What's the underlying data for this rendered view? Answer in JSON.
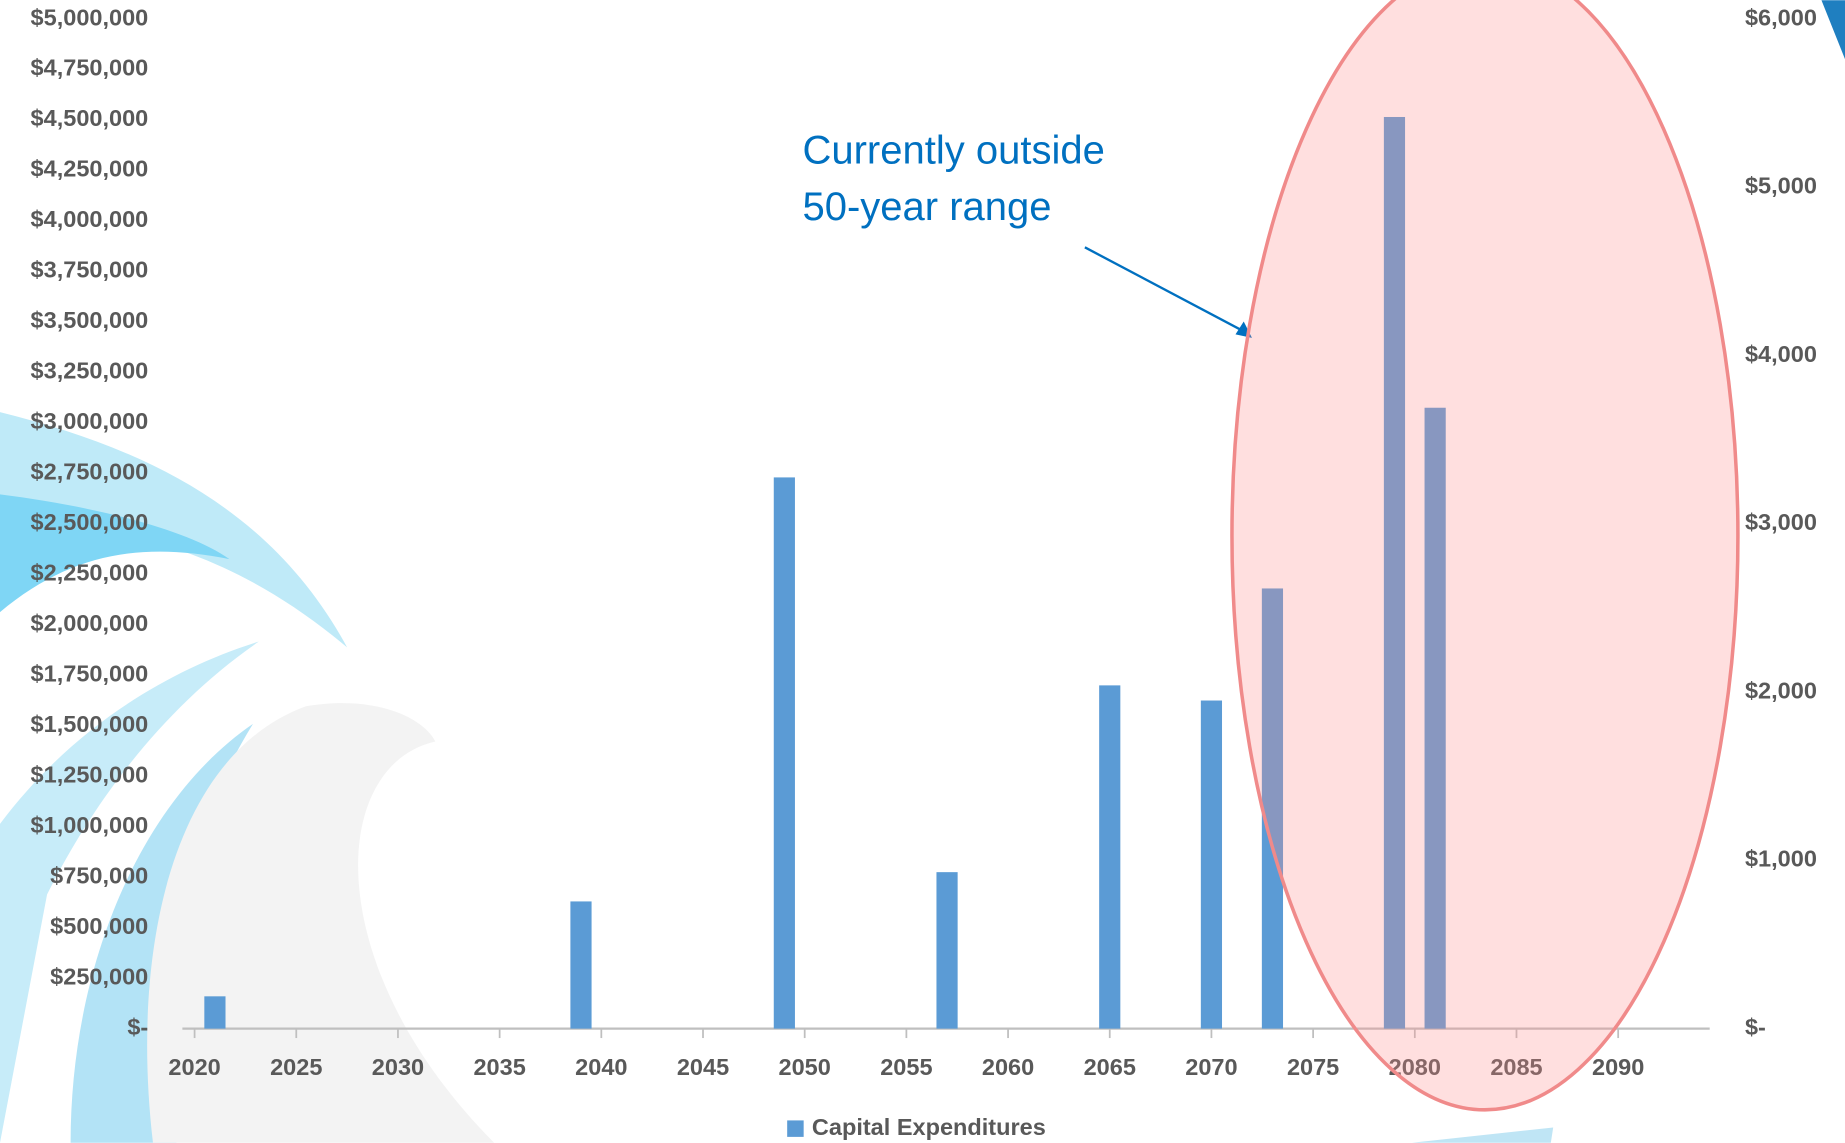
{
  "chart_data": {
    "type": "bar",
    "x": [
      2021,
      2039,
      2049,
      2057,
      2065,
      2070,
      2073,
      2079,
      2081
    ],
    "series": [
      {
        "name": "Capital Expenditures",
        "color": "#5b9bd5",
        "values": [
          160000,
          630000,
          2730000,
          775000,
          1700000,
          1625000,
          2180000,
          4515000,
          3075000
        ]
      }
    ],
    "xlim": [
      2019.4,
      2094.5
    ],
    "xticks": [
      2020,
      2025,
      2030,
      2035,
      2040,
      2045,
      2050,
      2055,
      2060,
      2065,
      2070,
      2075,
      2080,
      2085,
      2090
    ],
    "ylim": [
      0,
      5000000
    ],
    "yticks": [
      {
        "value": 0,
        "label": "$-"
      },
      {
        "value": 250000,
        "label": "$250,000"
      },
      {
        "value": 500000,
        "label": "$500,000"
      },
      {
        "value": 750000,
        "label": "$750,000"
      },
      {
        "value": 1000000,
        "label": "$1,000,000"
      },
      {
        "value": 1250000,
        "label": "$1,250,000"
      },
      {
        "value": 1500000,
        "label": "$1,500,000"
      },
      {
        "value": 1750000,
        "label": "$1,750,000"
      },
      {
        "value": 2000000,
        "label": "$2,000,000"
      },
      {
        "value": 2250000,
        "label": "$2,250,000"
      },
      {
        "value": 2500000,
        "label": "$2,500,000"
      },
      {
        "value": 2750000,
        "label": "$2,750,000"
      },
      {
        "value": 3000000,
        "label": "$3,000,000"
      },
      {
        "value": 3250000,
        "label": "$3,250,000"
      },
      {
        "value": 3500000,
        "label": "$3,500,000"
      },
      {
        "value": 3750000,
        "label": "$3,750,000"
      },
      {
        "value": 4000000,
        "label": "$4,000,000"
      },
      {
        "value": 4250000,
        "label": "$4,250,000"
      },
      {
        "value": 4500000,
        "label": "$4,500,000"
      },
      {
        "value": 4750000,
        "label": "$4,750,000"
      },
      {
        "value": 5000000,
        "label": "$5,000,000"
      }
    ],
    "y2lim": [
      0,
      6000
    ],
    "y2ticks": [
      {
        "value": 0,
        "label": "$-"
      },
      {
        "value": 1000,
        "label": "$1,000"
      },
      {
        "value": 2000,
        "label": "$2,000"
      },
      {
        "value": 3000,
        "label": "$3,000"
      },
      {
        "value": 4000,
        "label": "$4,000"
      },
      {
        "value": 5000,
        "label": "$5,000"
      },
      {
        "value": 6000,
        "label": "$6,000"
      }
    ],
    "annotation": [
      "Currently outside",
      "50-year range"
    ],
    "legend": "bottom"
  }
}
